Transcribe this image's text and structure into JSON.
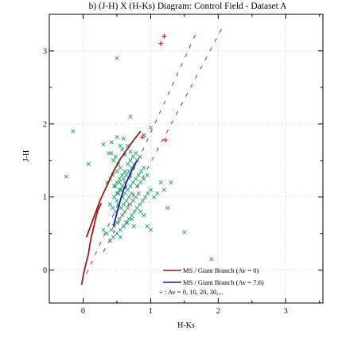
{
  "chart_data": {
    "type": "scatter",
    "title": "b) (J-H) X (H-Ks) Diagram: Control Field - Dataset A",
    "xlabel": "H-Ks",
    "ylabel": "J-H",
    "xlim": [
      -0.5,
      3.55
    ],
    "ylim": [
      -0.45,
      3.5
    ],
    "xticks": [
      0,
      1,
      2,
      3
    ],
    "yticks": [
      0,
      1,
      2,
      3
    ],
    "xtick_labels": [
      "0",
      "1",
      "2",
      "3"
    ],
    "ytick_labels": [
      "0",
      "1",
      "2",
      "3"
    ],
    "grid": true,
    "legend_position": "bottom-right",
    "legend": {
      "items": [
        "MS / Giant Branch (Av = 0)",
        "MS / Giant Branch (Av = 7.6)",
        "+ : Av = 0, 10, 20, 30,..."
      ]
    },
    "colors": {
      "ms_av0": "#a01818",
      "ms_av76": "#1a1aa0",
      "reddening": "#c41e3a",
      "stars": "#1aa068"
    },
    "ms_branch_av0": {
      "x": [
        -0.02,
        0.0,
        0.04,
        0.08,
        0.1,
        0.12,
        0.14,
        0.16,
        0.18,
        0.2,
        0.22,
        0.25,
        0.27
      ],
      "y": [
        -0.2,
        -0.08,
        0.08,
        0.22,
        0.35,
        0.45,
        0.52,
        0.6,
        0.68,
        0.76,
        0.82,
        0.88,
        0.92
      ]
    },
    "giant_branch_av0": {
      "x": [
        0.05,
        0.15,
        0.25,
        0.35,
        0.45,
        0.55,
        0.65,
        0.75,
        0.85
      ],
      "y": [
        0.45,
        0.7,
        0.95,
        1.15,
        1.35,
        1.52,
        1.65,
        1.78,
        1.9
      ]
    },
    "ms_branch_av76": {
      "x": [
        0.45,
        0.5,
        0.55,
        0.6,
        0.65,
        0.7,
        0.75,
        0.8
      ],
      "y": [
        0.6,
        0.78,
        0.95,
        1.1,
        1.22,
        1.32,
        1.42,
        1.5
      ]
    },
    "reddening_lines": [
      {
        "x": [
          0.05,
          1.7
        ],
        "y": [
          -0.05,
          3.3
        ]
      },
      {
        "x": [
          0.3,
          2.05
        ],
        "y": [
          0.25,
          3.3
        ]
      }
    ],
    "reddening_marks": {
      "x": [
        0.88,
        1.22,
        1.15,
        1.2
      ],
      "y": [
        1.82,
        1.78,
        3.1,
        3.2
      ]
    },
    "stars": {
      "x": [
        0.3,
        0.42,
        0.38,
        0.5,
        0.55,
        0.48,
        0.6,
        0.52,
        0.45,
        0.58,
        0.62,
        0.66,
        0.7,
        0.55,
        0.5,
        0.44,
        0.4,
        0.36,
        0.48,
        0.54,
        0.6,
        0.64,
        0.68,
        0.72,
        0.76,
        0.8,
        0.84,
        0.56,
        0.52,
        0.46,
        0.5,
        0.58,
        0.62,
        0.66,
        0.7,
        0.74,
        0.78,
        0.82,
        0.86,
        0.9,
        0.6,
        0.64,
        0.68,
        0.72,
        0.56,
        0.52,
        0.48,
        0.44,
        0.4,
        0.58,
        0.62,
        0.66,
        0.7,
        0.74,
        0.78,
        0.82,
        0.54,
        0.5,
        0.46,
        0.42,
        0.6,
        0.64,
        0.68,
        0.72,
        0.76,
        0.8,
        0.84,
        0.88,
        0.92,
        0.96,
        1.0,
        0.7,
        0.74,
        0.78,
        0.62,
        0.58,
        0.54,
        0.5,
        0.46,
        0.66,
        0.7,
        0.62,
        0.58,
        0.54,
        0.5,
        0.8,
        0.85,
        0.9,
        0.95,
        1.05,
        1.1,
        1.2,
        1.3,
        0.85,
        0.9,
        0.72,
        0.65,
        0.6,
        0.55,
        0.5,
        0.45,
        0.4,
        0.35,
        0.3,
        0.95,
        1.0,
        -0.25,
        -0.15,
        0.08,
        0.42,
        0.9,
        1.0,
        1.15,
        1.25,
        1.5,
        1.9,
        0.75,
        0.55,
        0.7,
        0.5
      ],
      "y": [
        1.72,
        1.75,
        1.6,
        1.82,
        1.7,
        1.55,
        1.8,
        1.45,
        1.5,
        1.65,
        1.58,
        1.7,
        1.62,
        1.4,
        1.35,
        1.3,
        1.25,
        1.2,
        1.15,
        1.2,
        1.25,
        1.3,
        1.35,
        1.4,
        1.45,
        1.5,
        1.55,
        1.1,
        1.05,
        1.0,
        0.95,
        1.0,
        1.05,
        1.1,
        1.15,
        1.2,
        1.25,
        1.3,
        1.35,
        1.4,
        0.9,
        0.95,
        1.0,
        1.05,
        0.85,
        0.9,
        0.8,
        0.85,
        0.9,
        0.75,
        0.8,
        0.85,
        0.9,
        0.95,
        1.0,
        1.05,
        0.7,
        0.65,
        0.6,
        0.55,
        0.6,
        0.65,
        0.7,
        0.75,
        0.8,
        0.85,
        0.9,
        0.95,
        1.0,
        1.05,
        1.1,
        1.5,
        1.55,
        1.6,
        1.35,
        1.3,
        1.25,
        1.2,
        1.15,
        1.45,
        1.3,
        1.2,
        1.15,
        1.1,
        1.05,
        1.15,
        1.2,
        1.25,
        1.3,
        1.0,
        1.05,
        1.1,
        1.2,
        0.8,
        0.75,
        0.7,
        0.65,
        0.6,
        0.55,
        0.5,
        0.45,
        0.4,
        0.5,
        0.55,
        0.6,
        0.55,
        1.28,
        1.9,
        1.45,
        1.6,
        1.85,
        1.95,
        1.2,
        0.85,
        0.52,
        0.15,
        0.6,
        0.45,
        2.1,
        2.9
      ],
      "marker": "x"
    }
  }
}
